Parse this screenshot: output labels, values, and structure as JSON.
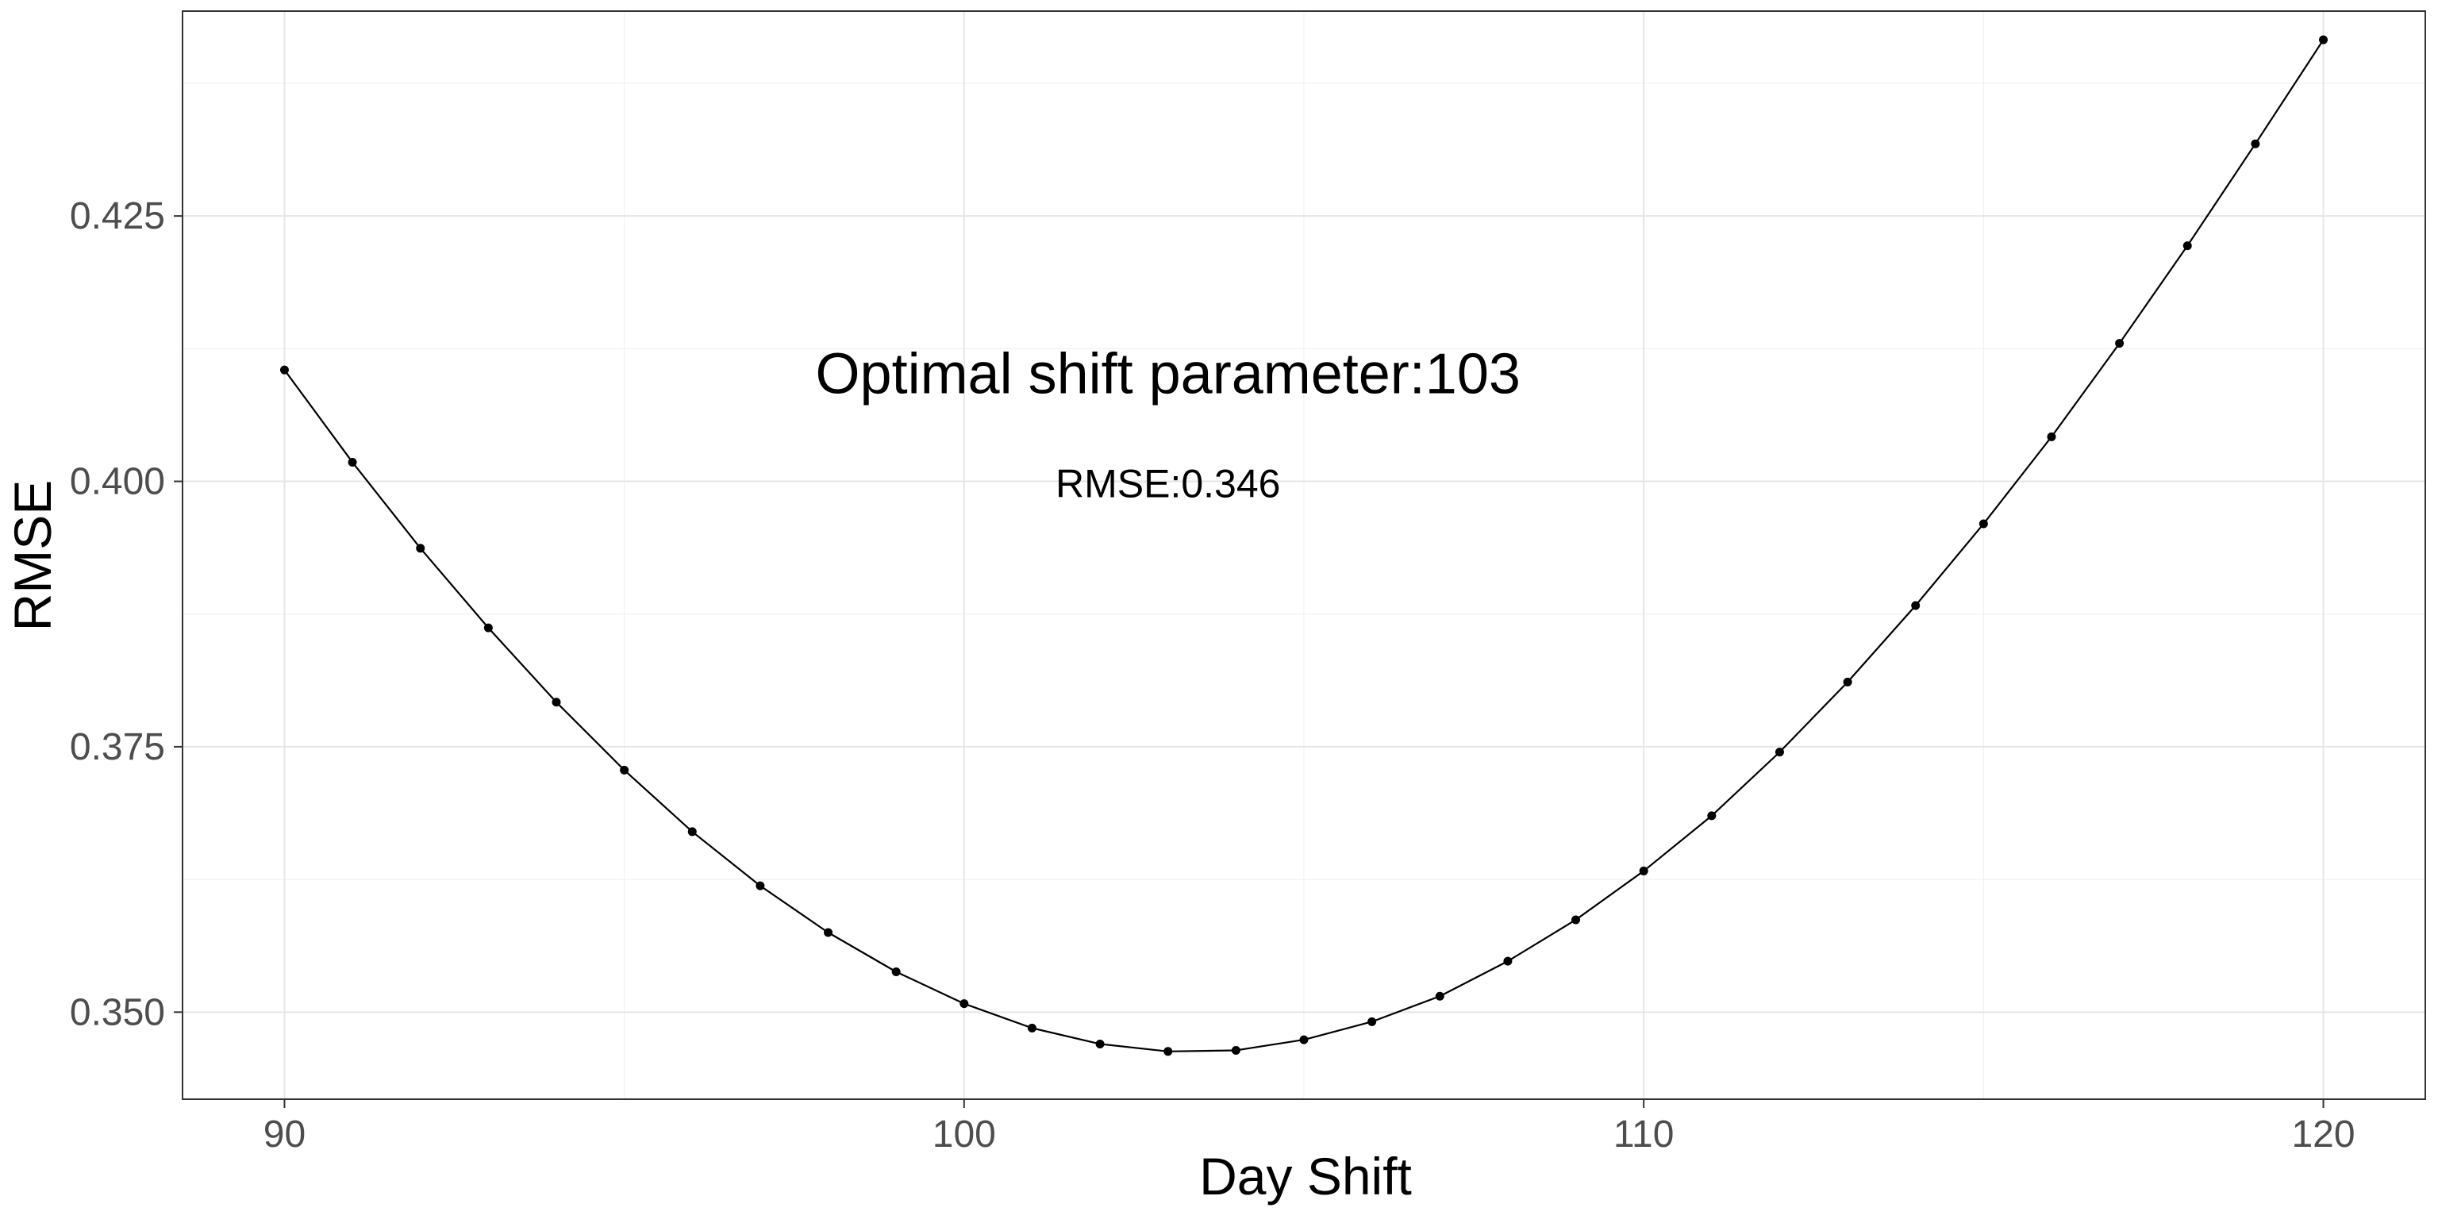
{
  "chart_data": {
    "type": "line",
    "title": "",
    "xlabel": "Day Shift",
    "ylabel": "RMSE",
    "xlim": [
      88.5,
      121.5
    ],
    "ylim": [
      0.3418,
      0.4443
    ],
    "x_ticks": [
      90,
      100,
      110,
      120
    ],
    "y_ticks": [
      0.35,
      0.375,
      0.4,
      0.425
    ],
    "y_tick_labels": [
      "0.350",
      "0.375",
      "0.400",
      "0.425"
    ],
    "grid": true,
    "legend": "none",
    "line_color": "#000000",
    "point_color": "#000000",
    "series": [
      {
        "x": [
          90,
          91,
          92,
          93,
          94,
          95,
          96,
          97,
          98,
          99,
          100,
          101,
          102,
          103,
          104,
          105,
          106,
          107,
          108,
          109,
          110,
          111,
          112,
          113,
          114,
          115,
          116,
          117,
          118,
          119,
          120
        ],
        "values": [
          0.4105,
          0.4018,
          0.3937,
          0.3862,
          0.3792,
          0.3728,
          0.367,
          0.3619,
          0.3575,
          0.3538,
          0.3508,
          0.3485,
          0.347,
          0.3463,
          0.3464,
          0.3474,
          0.3491,
          0.3515,
          0.3548,
          0.3587,
          0.3633,
          0.3685,
          0.3745,
          0.3811,
          0.3883,
          0.396,
          0.4042,
          0.413,
          0.4222,
          0.4318,
          0.4416
        ]
      }
    ],
    "annotations": [
      {
        "text": "Optimal shift parameter:103",
        "x": 103,
        "y": 0.4102,
        "size": "large"
      },
      {
        "text": "RMSE:0.346",
        "x": 103,
        "y": 0.3998,
        "size": "medium"
      }
    ]
  }
}
